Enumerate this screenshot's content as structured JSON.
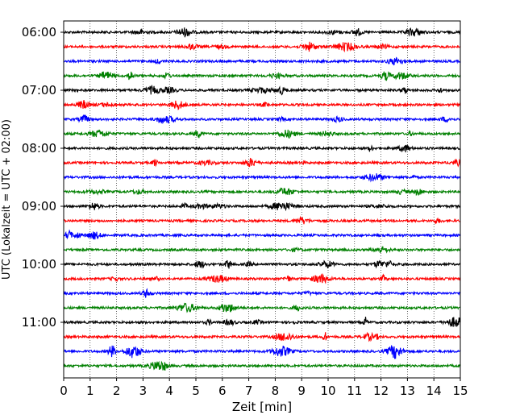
{
  "chart_data": {
    "type": "line",
    "title": "",
    "xlabel": "Zeit  [min]",
    "ylabel": "UTC (Lokalzeit = UTC + 02:00)",
    "xlim": [
      0,
      15
    ],
    "x_ticks": [
      "0",
      "1",
      "2",
      "3",
      "4",
      "5",
      "6",
      "7",
      "8",
      "9",
      "10",
      "11",
      "12",
      "13",
      "14",
      "15"
    ],
    "y_ticks": [
      {
        "label": "06:00",
        "row": 0
      },
      {
        "label": "07:00",
        "row": 4
      },
      {
        "label": "08:00",
        "row": 8
      },
      {
        "label": "09:00",
        "row": 12
      },
      {
        "label": "10:00",
        "row": 16
      },
      {
        "label": "11:00",
        "row": 20
      }
    ],
    "grid": "vertical dotted lines at each minute",
    "trace_count": 24,
    "trace_interval_min": 15,
    "trace_colors": [
      "#000000",
      "#ff0000",
      "#0000ff",
      "#008000"
    ],
    "colors": {
      "axes": "#000000",
      "grid": "#000000",
      "background": "#ffffff"
    }
  }
}
